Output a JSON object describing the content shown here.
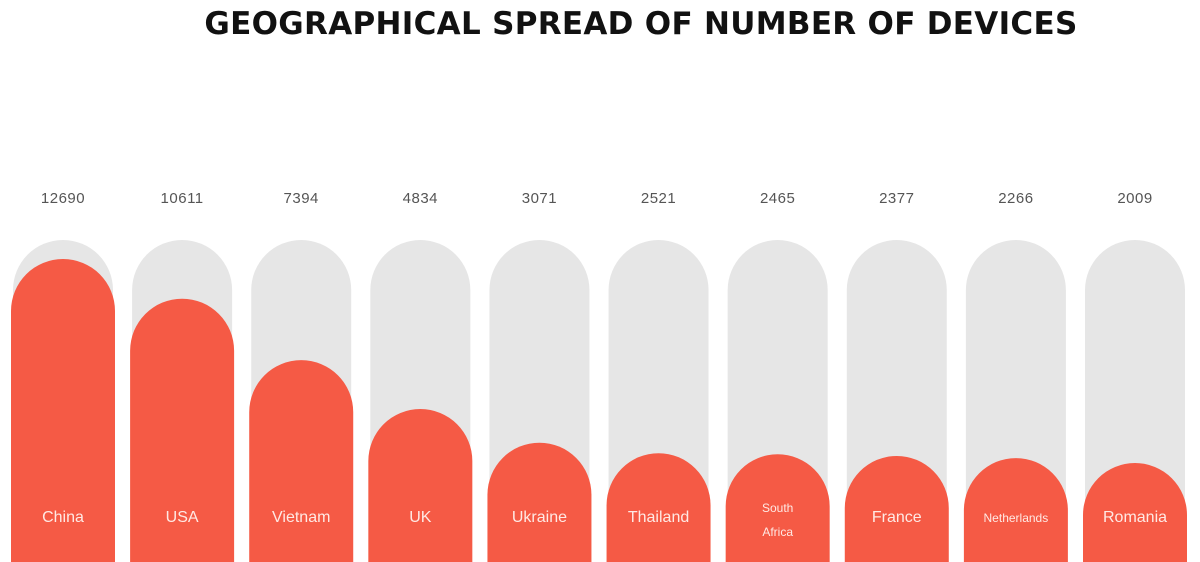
{
  "chart_data": {
    "type": "bar",
    "title": "GEOGRAPHICAL SPREAD OF NUMBER OF DEVICES",
    "categories": [
      [
        "China"
      ],
      [
        "USA"
      ],
      [
        "Vietnam"
      ],
      [
        "UK"
      ],
      [
        "Ukraine"
      ],
      [
        "Thailand"
      ],
      [
        "South",
        "Africa"
      ],
      [
        "France"
      ],
      [
        "Netherlands"
      ],
      [
        "Romania"
      ]
    ],
    "values": [
      12690,
      10611,
      7394,
      4834,
      3071,
      2521,
      2465,
      2377,
      2266,
      2009
    ],
    "colors": {
      "bar": "#f55a45",
      "track": "#e6e6e6",
      "value_label": "#555555",
      "category_label": "#ffe9e4",
      "title": "#111111"
    }
  }
}
